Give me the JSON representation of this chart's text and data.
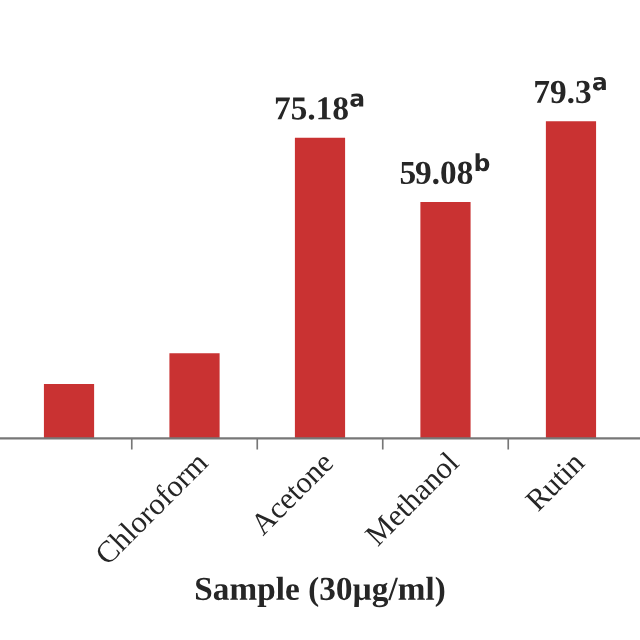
{
  "chart_data": {
    "type": "bar",
    "xlabel": "Sample (30µg/ml)",
    "categories": [
      null,
      "Chloroform",
      "Acetone",
      "Methanol",
      "Rutin"
    ],
    "series": [
      {
        "color": "#c93232",
        "values": [
          13.6,
          21.3,
          75.18,
          59.08,
          79.3
        ],
        "value_labels": [
          null,
          null,
          "75.18$^{a}$",
          "59.08$^{b}$",
          "79.3$^{a}$"
        ]
      }
    ]
  }
}
